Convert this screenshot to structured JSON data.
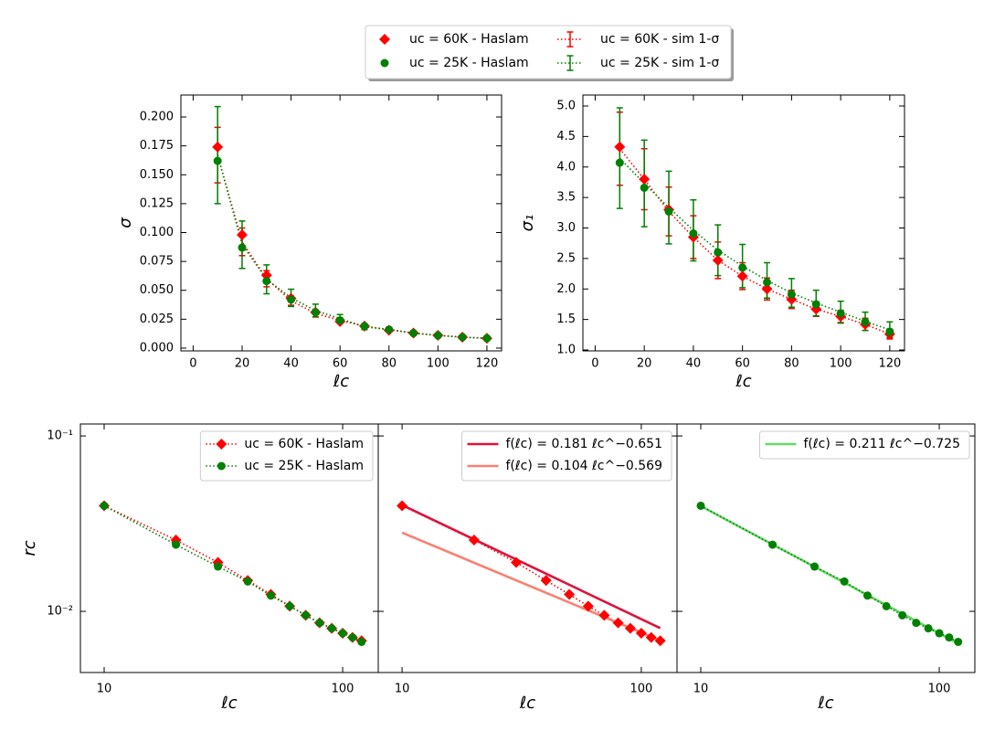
{
  "chart_data": [
    {
      "type": "scatter",
      "xlabel": "ℓc",
      "ylabel": "σ",
      "legend": "upper center",
      "xlim": [
        -5,
        126
      ],
      "ylim": [
        -0.0024,
        0.219
      ],
      "xticks": [
        0,
        20,
        40,
        60,
        80,
        100,
        120
      ],
      "yticks": [
        {
          "value": 0,
          "label": "0.000"
        },
        0.025,
        {
          "value": 0.05,
          "label": "0.050"
        },
        0.075,
        {
          "value": 0.1,
          "label": "0.100"
        },
        0.125,
        {
          "value": 0.15,
          "label": "0.150"
        },
        0.175,
        {
          "value": 0.2,
          "label": "0.200"
        }
      ],
      "x": [
        10,
        20,
        30,
        40,
        50,
        60,
        70,
        80,
        90,
        100,
        110,
        120
      ],
      "series": [
        {
          "name": "uc = 60K - Haslam",
          "color": "#ff0000",
          "marker": "diamond",
          "values": [
            0.174,
            0.098,
            0.063,
            0.043,
            0.031,
            0.023,
            0.019,
            0.0155,
            0.013,
            0.011,
            0.0095,
            0.0085
          ]
        },
        {
          "name": "uc = 25K - Haslam",
          "color": "#008000",
          "marker": "circle",
          "values": [
            0.162,
            0.087,
            0.058,
            0.042,
            0.031,
            0.024,
            0.019,
            0.016,
            0.013,
            0.011,
            0.0095,
            0.0085
          ]
        },
        {
          "name": "uc = 60K - sim 1-σ",
          "color": "#ff0000",
          "linestyle": "dotted",
          "values": [
            0.167,
            0.092,
            0.06,
            0.041,
            0.03,
            0.024,
            0.019,
            0.016,
            0.013,
            0.011,
            0.0095,
            0.0085
          ],
          "errors": [
            0.024,
            0.012,
            0.007,
            0.004,
            0.003,
            0.002,
            0.002,
            0.001,
            0.001,
            0.001,
            0.001,
            0.001
          ]
        },
        {
          "name": "uc = 25K - sim 1-σ",
          "color": "#008000",
          "linestyle": "dotted",
          "values": [
            0.167,
            0.0895,
            0.0595,
            0.0435,
            0.0325,
            0.0255,
            0.0185,
            0.016,
            0.013,
            0.011,
            0.0095,
            0.0085
          ],
          "errors": [
            0.042,
            0.0205,
            0.0125,
            0.0075,
            0.0055,
            0.0035,
            0.0025,
            0.002,
            0.0015,
            0.001,
            0.001,
            0.001
          ]
        }
      ]
    },
    {
      "type": "scatter",
      "xlabel": "ℓc",
      "ylabel": "σ₁",
      "xlim": [
        -5,
        126
      ],
      "ylim": [
        0.985,
        5.18
      ],
      "xticks": [
        0,
        20,
        40,
        60,
        80,
        100,
        120
      ],
      "yticks": [
        {
          "value": 1,
          "label": "1.0"
        },
        1.5,
        {
          "value": 2,
          "label": "2.0"
        },
        2.5,
        {
          "value": 3,
          "label": "3.0"
        },
        3.5,
        {
          "value": 4,
          "label": "4.0"
        },
        4.5,
        {
          "value": 5,
          "label": "5.0"
        }
      ],
      "x": [
        10,
        20,
        30,
        40,
        50,
        60,
        70,
        80,
        90,
        100,
        110,
        120
      ],
      "series": [
        {
          "color": "#ff0000",
          "marker": "diamond",
          "values": [
            4.33,
            3.8,
            3.3,
            2.85,
            2.47,
            2.21,
            2.0,
            1.83,
            1.67,
            1.55,
            1.42,
            1.26
          ]
        },
        {
          "color": "#008000",
          "marker": "circle",
          "values": [
            4.07,
            3.66,
            3.27,
            2.91,
            2.6,
            2.35,
            2.11,
            1.91,
            1.75,
            1.6,
            1.46,
            1.3
          ]
        },
        {
          "color": "#ff0000",
          "linestyle": "dotted",
          "values": [
            4.3,
            3.8,
            3.27,
            2.85,
            2.47,
            2.21,
            2.0,
            1.83,
            1.67,
            1.55,
            1.42,
            1.26
          ],
          "errors": [
            0.6,
            0.5,
            0.4,
            0.35,
            0.3,
            0.22,
            0.18,
            0.15,
            0.12,
            0.1,
            0.1,
            0.08
          ]
        },
        {
          "color": "#008000",
          "linestyle": "dotted",
          "values": [
            4.145,
            3.73,
            3.335,
            2.96,
            2.635,
            2.375,
            2.14,
            1.935,
            1.77,
            1.62,
            1.47,
            1.33
          ],
          "errors": [
            0.825,
            0.71,
            0.595,
            0.5,
            0.415,
            0.355,
            0.29,
            0.235,
            0.21,
            0.18,
            0.15,
            0.13
          ]
        }
      ]
    },
    {
      "type": "scatter",
      "xlabel": "ℓc",
      "ylabel": "rc",
      "xscale": "log",
      "yscale": "log",
      "legend": "upper right",
      "xlim": [
        7.95,
        141
      ],
      "ylim": [
        0.00448,
        0.117
      ],
      "xticks": [
        10,
        100
      ],
      "yticks": [
        {
          "value": 0.1,
          "label": "10⁻¹"
        },
        {
          "value": 0.01,
          "label": "10⁻²"
        }
      ],
      "x": [
        10,
        20,
        30,
        40,
        50,
        60,
        70,
        80,
        90,
        100,
        110,
        120
      ],
      "series": [
        {
          "name": "uc = 60K - Haslam",
          "color": "#ff0000",
          "marker": "diamond",
          "linestyle": "dotted",
          "values": [
            0.04,
            0.0255,
            0.019,
            0.015,
            0.0125,
            0.0107,
            0.0095,
            0.0086,
            0.008,
            0.0075,
            0.0071,
            0.0068
          ]
        },
        {
          "name": "uc = 25K - Haslam",
          "color": "#008000",
          "marker": "circle",
          "linestyle": "dotted",
          "values": [
            0.04,
            0.024,
            0.018,
            0.0148,
            0.0123,
            0.0107,
            0.0095,
            0.0086,
            0.008,
            0.0075,
            0.0071,
            0.0067
          ]
        }
      ]
    },
    {
      "type": "scatter",
      "xlabel": "ℓc",
      "xscale": "log",
      "yscale": "log",
      "legend": "upper right",
      "ytick_labels": false,
      "xlim": [
        7.95,
        141
      ],
      "ylim": [
        0.00448,
        0.117
      ],
      "xticks": [
        10,
        100
      ],
      "yticks": [
        0.1,
        0.01
      ],
      "x": [
        10,
        20,
        30,
        40,
        50,
        60,
        70,
        80,
        90,
        100,
        110,
        120
      ],
      "series": [
        {
          "color": "#ff0000",
          "marker": "diamond",
          "linestyle": "dotted",
          "values": [
            0.04,
            0.0255,
            0.019,
            0.015,
            0.0125,
            0.0107,
            0.0095,
            0.0086,
            0.008,
            0.0075,
            0.0071,
            0.0068
          ]
        },
        {
          "name": "f(ℓc) = 0.181 ℓc^−0.651",
          "color": "#dc143c",
          "linestyle": "solid",
          "x": [
            10,
            120
          ],
          "values": [
            0.0404,
            0.00802
          ]
        },
        {
          "name": "f(ℓc) = 0.104 ℓc^−0.569",
          "color": "#fa8072",
          "linestyle": "solid",
          "x": [
            10,
            120
          ],
          "values": [
            0.0281,
            0.00682
          ]
        }
      ]
    },
    {
      "type": "scatter",
      "xlabel": "ℓc",
      "xscale": "log",
      "yscale": "log",
      "legend": "upper right",
      "ytick_labels": false,
      "xlim": [
        7.95,
        141
      ],
      "ylim": [
        0.00448,
        0.117
      ],
      "xticks": [
        10,
        100
      ],
      "yticks": [
        0.1,
        0.01
      ],
      "x": [
        10,
        20,
        30,
        40,
        50,
        60,
        70,
        80,
        90,
        100,
        110,
        120
      ],
      "series": [
        {
          "name": "f(ℓc) = 0.211 ℓc^−0.725",
          "color": "#66d966",
          "linestyle": "solid",
          "x": [
            10,
            120
          ],
          "values": [
            0.0398,
            0.00657
          ]
        },
        {
          "color": "#008000",
          "marker": "circle",
          "linestyle": "dotted",
          "values": [
            0.04,
            0.024,
            0.018,
            0.0148,
            0.0123,
            0.0107,
            0.0095,
            0.0086,
            0.008,
            0.0075,
            0.0071,
            0.0067
          ]
        }
      ]
    }
  ]
}
